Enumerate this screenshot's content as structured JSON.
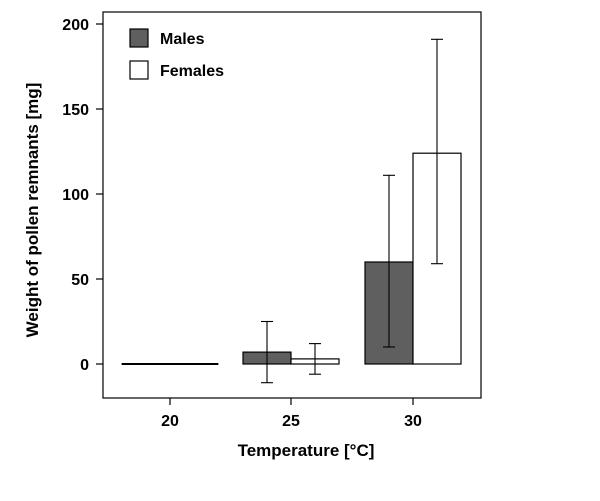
{
  "chart_data": {
    "type": "bar",
    "categories": [
      "20",
      "25",
      "30"
    ],
    "series": [
      {
        "name": "Males",
        "values": [
          0,
          7,
          60
        ],
        "err_low": [
          0,
          -11,
          10
        ],
        "err_high": [
          0,
          25,
          111
        ],
        "color": "#5f5f5f"
      },
      {
        "name": "Females",
        "values": [
          0,
          3,
          124
        ],
        "err_low": [
          0,
          -6,
          59
        ],
        "err_high": [
          0,
          12,
          191
        ],
        "color": "#ffffff"
      }
    ],
    "xlabel": "Temperature [°C]",
    "ylabel": "Weight of pollen remnants [mg]",
    "ylim": [
      -20,
      208
    ],
    "yticks": [
      0,
      50,
      100,
      150,
      200
    ],
    "grid": false,
    "legend_position": "top-left"
  }
}
